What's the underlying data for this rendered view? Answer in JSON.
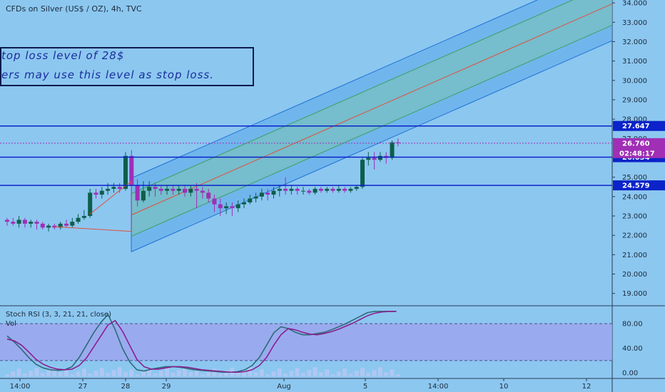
{
  "header": {
    "title": "CFDs on Silver (US$ / OZ), 4h, TVC"
  },
  "annotation": {
    "line1": "top loss level of 28$",
    "line2": "ers may use this level as stop loss."
  },
  "indicators": {
    "stoch_label": "Stoch RSI (3, 3, 21, 21, close)",
    "vol_label": "Vol"
  },
  "colors": {
    "background": "#8cc7f0",
    "bull": "#0e5e4b",
    "bear": "#a02fb5",
    "level_line": "#0b23c9",
    "channel_fill": "#5aa8ea",
    "channel_mid": "#e0503a",
    "channel_inner": "#3fa064",
    "stoch_band": "#9ea2ee",
    "k_line": "#2c6b78",
    "d_line": "#8a1f8e"
  },
  "chart_data": [
    {
      "type": "candlestick",
      "title": "CFDs on Silver (US$ / OZ), 4h, TVC",
      "x_ticks": [
        "14:00",
        "27",
        "28",
        "29",
        "Aug",
        "5",
        "14:00",
        "10",
        "12"
      ],
      "y_ticks": [
        19.0,
        20.0,
        21.0,
        22.0,
        23.0,
        24.0,
        25.0,
        26.0,
        27.0,
        28.0,
        29.0,
        30.0,
        31.0,
        32.0,
        33.0,
        34.0
      ],
      "y_tick_labels": [
        "19.000",
        "20.000",
        "21.000",
        "22.000",
        "23.000",
        "24.000",
        "25.000",
        "26.000",
        "27.000",
        "28.000",
        "29.000",
        "30.000",
        "31.000",
        "32.000",
        "33.000",
        "34.000"
      ],
      "ylim": [
        18.4,
        34.15
      ],
      "price_levels": [
        {
          "value": 27.647,
          "label": "27.647"
        },
        {
          "value": 26.034,
          "label": "26.034"
        },
        {
          "value": 24.579,
          "label": "24.579"
        }
      ],
      "last_price": {
        "value": 26.76,
        "label": "26.760",
        "countdown": "02:48:17"
      },
      "regression_channel": {
        "start": 23.05,
        "end": 33.95,
        "offsets_outer": [
          -1.9,
          1.9
        ],
        "offsets_inner": [
          -1.1,
          1.1
        ]
      },
      "candles": [
        [
          22.8,
          22.7,
          22.9,
          22.5
        ],
        [
          22.7,
          22.6,
          22.9,
          22.5
        ],
        [
          22.6,
          22.8,
          23.0,
          22.4
        ],
        [
          22.8,
          22.6,
          22.9,
          22.4
        ],
        [
          22.6,
          22.7,
          22.8,
          22.4
        ],
        [
          22.7,
          22.6,
          22.8,
          22.3
        ],
        [
          22.6,
          22.4,
          22.7,
          22.3
        ],
        [
          22.4,
          22.5,
          22.6,
          22.2
        ],
        [
          22.5,
          22.4,
          22.6,
          22.3
        ],
        [
          22.4,
          22.6,
          22.7,
          22.3
        ],
        [
          22.6,
          22.5,
          22.8,
          22.4
        ],
        [
          22.5,
          22.7,
          22.9,
          22.4
        ],
        [
          22.7,
          22.9,
          23.1,
          22.6
        ],
        [
          22.9,
          23.0,
          23.3,
          22.8
        ],
        [
          23.0,
          24.2,
          24.4,
          22.9
        ],
        [
          24.2,
          24.1,
          24.4,
          23.9
        ],
        [
          24.1,
          24.3,
          24.5,
          23.9
        ],
        [
          24.3,
          24.4,
          24.7,
          24.1
        ],
        [
          24.4,
          24.5,
          24.7,
          24.2
        ],
        [
          24.5,
          24.4,
          24.7,
          24.2
        ],
        [
          24.4,
          26.1,
          26.3,
          24.3
        ],
        [
          26.1,
          24.6,
          26.4,
          22.2
        ],
        [
          24.6,
          23.8,
          24.9,
          23.5
        ],
        [
          23.8,
          24.3,
          24.8,
          23.7
        ],
        [
          24.3,
          24.5,
          24.8,
          24.0
        ],
        [
          24.5,
          24.4,
          24.7,
          24.0
        ],
        [
          24.4,
          24.3,
          24.6,
          24.1
        ],
        [
          24.3,
          24.4,
          24.6,
          24.1
        ],
        [
          24.4,
          24.3,
          24.6,
          24.1
        ],
        [
          24.3,
          24.4,
          24.6,
          24.1
        ],
        [
          24.4,
          24.2,
          24.6,
          24.0
        ],
        [
          24.2,
          24.4,
          24.6,
          24.0
        ],
        [
          24.4,
          24.3,
          24.7,
          23.4
        ],
        [
          24.3,
          24.2,
          24.5,
          23.9
        ],
        [
          24.2,
          23.9,
          24.4,
          23.7
        ],
        [
          23.9,
          23.6,
          24.1,
          23.2
        ],
        [
          23.6,
          23.4,
          23.9,
          23.0
        ],
        [
          23.4,
          23.5,
          23.7,
          23.1
        ],
        [
          23.5,
          23.4,
          23.7,
          23.0
        ],
        [
          23.4,
          23.6,
          23.8,
          23.2
        ],
        [
          23.6,
          23.7,
          23.9,
          23.4
        ],
        [
          23.7,
          23.9,
          24.1,
          23.6
        ],
        [
          23.9,
          24.0,
          24.2,
          23.7
        ],
        [
          24.0,
          24.2,
          24.4,
          23.8
        ],
        [
          24.2,
          24.1,
          24.4,
          23.8
        ],
        [
          24.1,
          24.3,
          24.5,
          23.9
        ],
        [
          24.3,
          24.4,
          24.6,
          24.0
        ],
        [
          24.4,
          24.3,
          25.0,
          24.1
        ],
        [
          24.3,
          24.4,
          24.6,
          24.1
        ],
        [
          24.4,
          24.3,
          24.5,
          24.1
        ],
        [
          24.3,
          24.3,
          24.5,
          24.1
        ],
        [
          24.3,
          24.2,
          24.4,
          24.1
        ],
        [
          24.2,
          24.4,
          24.5,
          24.1
        ],
        [
          24.4,
          24.3,
          24.5,
          24.2
        ],
        [
          24.3,
          24.4,
          24.5,
          24.2
        ],
        [
          24.4,
          24.3,
          24.5,
          24.2
        ],
        [
          24.3,
          24.4,
          24.6,
          24.2
        ],
        [
          24.4,
          24.3,
          24.5,
          24.2
        ],
        [
          24.3,
          24.4,
          24.5,
          24.2
        ],
        [
          24.4,
          24.5,
          24.6,
          24.3
        ],
        [
          24.5,
          25.9,
          26.0,
          24.4
        ],
        [
          25.9,
          26.0,
          26.3,
          25.6
        ],
        [
          26.0,
          25.9,
          26.3,
          25.4
        ],
        [
          25.9,
          26.1,
          26.3,
          25.8
        ],
        [
          26.1,
          26.0,
          26.3,
          25.7
        ],
        [
          26.0,
          26.8,
          26.9,
          25.9
        ],
        [
          26.8,
          26.76,
          27.0,
          26.6
        ]
      ],
      "candle_fields": [
        "open",
        "close",
        "high",
        "low"
      ]
    },
    {
      "type": "line",
      "title": "Stoch RSI (3, 3, 21, 21, close)",
      "y_ticks": [
        0.0,
        40.0,
        80.0
      ],
      "y_tick_labels": [
        "0.00",
        "40.00",
        "80.00"
      ],
      "ylim": [
        -8,
        108
      ],
      "band": [
        20,
        80
      ],
      "series": [
        {
          "values": [
            60,
            50,
            38,
            25,
            14,
            8,
            5,
            4,
            5,
            10,
            25,
            45,
            65,
            82,
            95,
            70,
            40,
            18,
            5,
            3,
            6,
            8,
            10,
            10,
            9,
            7,
            5,
            4,
            3,
            2,
            1,
            1,
            2,
            5,
            12,
            25,
            45,
            65,
            75,
            72,
            66,
            62,
            62,
            64,
            66,
            70,
            75,
            80,
            86,
            92,
            98,
            100,
            100,
            100,
            100
          ]
        },
        {
          "values": [
            55,
            52,
            45,
            34,
            22,
            14,
            9,
            6,
            5,
            6,
            12,
            24,
            42,
            60,
            78,
            85,
            68,
            45,
            22,
            10,
            6,
            6,
            8,
            10,
            10,
            9,
            7,
            5,
            4,
            3,
            2,
            1,
            1,
            2,
            5,
            12,
            25,
            45,
            62,
            72,
            70,
            66,
            63,
            62,
            64,
            67,
            71,
            76,
            81,
            87,
            93,
            97,
            99,
            100,
            100
          ]
        }
      ]
    }
  ]
}
